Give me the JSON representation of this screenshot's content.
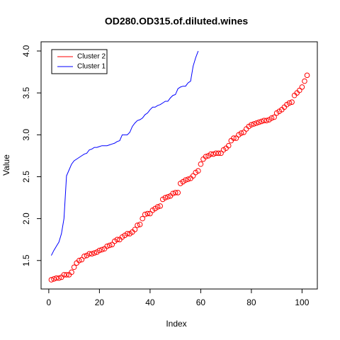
{
  "chart_data": {
    "type": "scatter-line",
    "title": "OD280.OD315.of.diluted.wines",
    "xlabel": "Index",
    "ylabel": "Value",
    "xlim": [
      -3.04,
      106.04
    ],
    "ylim": [
      1.16,
      4.11
    ],
    "xticks": [
      0,
      20,
      40,
      60,
      80,
      100
    ],
    "yticks": [
      1.5,
      {
        "value": 2,
        "label": "2.0"
      },
      2.5,
      {
        "value": 3,
        "label": "3.0"
      },
      3.5,
      {
        "value": 4,
        "label": "4.0"
      }
    ],
    "legend": "topleft",
    "series": [
      {
        "name": "Cluster 2",
        "color": "#ff0000",
        "mark": "points",
        "x": [
          1,
          2,
          3,
          4,
          5,
          6,
          7,
          8,
          9,
          10,
          11,
          12,
          13,
          14,
          15,
          16,
          17,
          18,
          19,
          20,
          21,
          22,
          23,
          24,
          25,
          26,
          27,
          28,
          29,
          30,
          31,
          32,
          33,
          34,
          35,
          36,
          37,
          38,
          39,
          40,
          41,
          42,
          43,
          44,
          45,
          46,
          47,
          48,
          49,
          50,
          51,
          52,
          53,
          54,
          55,
          56,
          57,
          58,
          59,
          60,
          61,
          62,
          63,
          64,
          65,
          66,
          67,
          68,
          69,
          70,
          71,
          72,
          73,
          74,
          75,
          76,
          77,
          78,
          79,
          80,
          81,
          82,
          83,
          84,
          85,
          86,
          87,
          88,
          89,
          90,
          91,
          92,
          93,
          94,
          95,
          96,
          97,
          98,
          99,
          100,
          101,
          102
        ],
        "values": [
          1.27,
          1.28,
          1.29,
          1.29,
          1.3,
          1.33,
          1.33,
          1.33,
          1.36,
          1.42,
          1.47,
          1.5,
          1.51,
          1.55,
          1.56,
          1.58,
          1.58,
          1.59,
          1.6,
          1.62,
          1.63,
          1.64,
          1.67,
          1.68,
          1.69,
          1.73,
          1.75,
          1.75,
          1.78,
          1.8,
          1.82,
          1.82,
          1.84,
          1.87,
          1.92,
          1.93,
          2.0,
          2.05,
          2.06,
          2.06,
          2.1,
          2.12,
          2.14,
          2.15,
          2.23,
          2.25,
          2.26,
          2.27,
          2.3,
          2.31,
          2.31,
          2.42,
          2.44,
          2.46,
          2.47,
          2.48,
          2.51,
          2.55,
          2.57,
          2.65,
          2.71,
          2.74,
          2.75,
          2.77,
          2.77,
          2.78,
          2.78,
          2.78,
          2.82,
          2.84,
          2.87,
          2.93,
          2.96,
          2.96,
          3.0,
          3.02,
          3.03,
          3.07,
          3.1,
          3.12,
          3.13,
          3.14,
          3.15,
          3.16,
          3.17,
          3.17,
          3.18,
          3.2,
          3.21,
          3.26,
          3.28,
          3.3,
          3.33,
          3.36,
          3.38,
          3.39,
          3.47,
          3.5,
          3.53,
          3.57,
          3.64,
          3.71
        ]
      },
      {
        "name": "Cluster 1",
        "color": "#0000ff",
        "mark": "line",
        "x": [
          1,
          2,
          3,
          4,
          5,
          6,
          7,
          8,
          9,
          10,
          11,
          12,
          13,
          14,
          15,
          16,
          17,
          18,
          19,
          20,
          21,
          22,
          23,
          24,
          25,
          26,
          27,
          28,
          29,
          30,
          31,
          32,
          33,
          34,
          35,
          36,
          37,
          38,
          39,
          40,
          41,
          42,
          43,
          44,
          45,
          46,
          47,
          48,
          49,
          50,
          51,
          52,
          53,
          54,
          55,
          56,
          57,
          58,
          59
        ],
        "values": [
          1.56,
          1.62,
          1.67,
          1.72,
          1.82,
          2.0,
          2.51,
          2.58,
          2.65,
          2.69,
          2.71,
          2.73,
          2.75,
          2.77,
          2.78,
          2.82,
          2.83,
          2.85,
          2.85,
          2.86,
          2.87,
          2.87,
          2.87,
          2.88,
          2.89,
          2.9,
          2.92,
          2.93,
          3.0,
          3.0,
          3.0,
          3.03,
          3.1,
          3.14,
          3.17,
          3.18,
          3.2,
          3.24,
          3.26,
          3.3,
          3.33,
          3.33,
          3.35,
          3.36,
          3.38,
          3.4,
          3.4,
          3.44,
          3.47,
          3.48,
          3.55,
          3.57,
          3.58,
          3.58,
          3.62,
          3.64,
          3.82,
          3.92,
          4.0
        ]
      }
    ]
  }
}
